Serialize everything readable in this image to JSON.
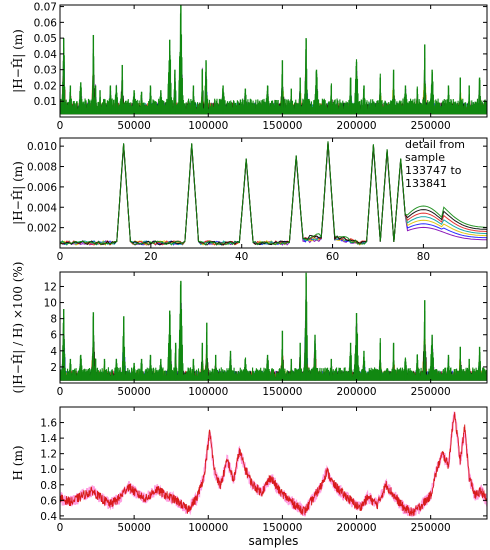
{
  "chart_data": [
    {
      "type": "line",
      "ylabel": "|H−Ĥ| (m)",
      "xlabel": "",
      "xlim": [
        0,
        288000
      ],
      "ylim": [
        0,
        0.071
      ],
      "xticks": [
        0,
        50000,
        100000,
        150000,
        200000,
        250000
      ],
      "yticks": [
        0.01,
        0.02,
        0.03,
        0.04,
        0.05,
        0.06,
        0.07
      ],
      "yfmt": 2,
      "series_colors": [
        "#7f00b2",
        "#1a1aff",
        "#e0c000",
        "#00a0a0",
        "#e02020",
        "#000000",
        "#118811"
      ],
      "baseline": 0.006,
      "peaks": [
        [
          2500,
          0.05
        ],
        [
          7000,
          0.02
        ],
        [
          14000,
          0.022
        ],
        [
          22500,
          0.052
        ],
        [
          24000,
          0.02
        ],
        [
          27000,
          0.017
        ],
        [
          34000,
          0.02
        ],
        [
          38000,
          0.02
        ],
        [
          42000,
          0.033
        ],
        [
          50000,
          0.017
        ],
        [
          55000,
          0.016
        ],
        [
          61000,
          0.02
        ],
        [
          68000,
          0.017
        ],
        [
          74000,
          0.049
        ],
        [
          77500,
          0.03
        ],
        [
          81500,
          0.071
        ],
        [
          90000,
          0.02
        ],
        [
          96000,
          0.03
        ],
        [
          98500,
          0.036
        ],
        [
          110000,
          0.02
        ],
        [
          125000,
          0.018
        ],
        [
          140000,
          0.02
        ],
        [
          150000,
          0.036
        ],
        [
          156000,
          0.018
        ],
        [
          162000,
          0.025
        ],
        [
          166000,
          0.05
        ],
        [
          173000,
          0.03
        ],
        [
          183000,
          0.02
        ],
        [
          196000,
          0.025
        ],
        [
          200000,
          0.035
        ],
        [
          205000,
          0.02
        ],
        [
          216000,
          0.025
        ],
        [
          225000,
          0.03
        ],
        [
          233000,
          0.02
        ],
        [
          241000,
          0.018
        ],
        [
          246000,
          0.046
        ],
        [
          251000,
          0.03
        ],
        [
          262000,
          0.02
        ],
        [
          270000,
          0.025
        ],
        [
          276000,
          0.02
        ],
        [
          283000,
          0.025
        ]
      ]
    },
    {
      "type": "line",
      "ylabel": "|H−Ĥ| (m)",
      "xlabel": "",
      "xlim": [
        0,
        94
      ],
      "ylim": [
        0,
        0.0108
      ],
      "xticks": [
        0,
        20,
        40,
        60,
        80
      ],
      "yticks": [
        0.002,
        0.004,
        0.006,
        0.008,
        0.01
      ],
      "yfmt": 3,
      "annotation": [
        "detail from",
        "sample",
        "133747 to",
        "133841"
      ],
      "series_colors": [
        "#7f00b2",
        "#1a1aff",
        "#e0c000",
        "#00a0a0",
        "#e02020",
        "#000000",
        "#118811"
      ],
      "spikes": [
        [
          14,
          0.0103
        ],
        [
          29,
          0.0103
        ],
        [
          41,
          0.0088
        ],
        [
          52,
          0.0091
        ],
        [
          59,
          0.0105
        ],
        [
          69,
          0.0102
        ],
        [
          72,
          0.0097
        ],
        [
          75,
          0.0088
        ]
      ],
      "after_bump": [
        80,
        0.0035
      ]
    },
    {
      "type": "line",
      "ylabel": "(|H−Ĥ| / H) ×100 (%)",
      "xlabel": "",
      "xlim": [
        0,
        288000
      ],
      "ylim": [
        0,
        13.8
      ],
      "xticks": [
        0,
        50000,
        100000,
        150000,
        200000,
        250000
      ],
      "yticks": [
        2,
        4,
        6,
        8,
        10,
        12
      ],
      "yfmt": 0,
      "series_colors": [
        "#7f00b2",
        "#1a1aff",
        "#e0c000",
        "#00a0a0",
        "#e02020",
        "#000000",
        "#118811"
      ],
      "baseline": 1.0,
      "peaks": [
        [
          2500,
          9.2
        ],
        [
          7000,
          3.0
        ],
        [
          14000,
          3.5
        ],
        [
          22500,
          8.8
        ],
        [
          24000,
          3.0
        ],
        [
          30000,
          3.0
        ],
        [
          38000,
          3.0
        ],
        [
          43000,
          8.3
        ],
        [
          50000,
          2.5
        ],
        [
          55000,
          3.0
        ],
        [
          61000,
          3.5
        ],
        [
          68000,
          3.0
        ],
        [
          74000,
          9.0
        ],
        [
          78000,
          5.0
        ],
        [
          81500,
          12.7
        ],
        [
          90000,
          3.0
        ],
        [
          96000,
          5.0
        ],
        [
          99000,
          7.5
        ],
        [
          105000,
          3.5
        ],
        [
          115000,
          4.0
        ],
        [
          125000,
          3.0
        ],
        [
          140000,
          3.5
        ],
        [
          150000,
          6.5
        ],
        [
          156000,
          3.0
        ],
        [
          162000,
          5.0
        ],
        [
          166000,
          13.7
        ],
        [
          172000,
          6.0
        ],
        [
          183000,
          3.0
        ],
        [
          196000,
          5.0
        ],
        [
          200000,
          8.7
        ],
        [
          205000,
          4.0
        ],
        [
          216000,
          5.0
        ],
        [
          225000,
          5.0
        ],
        [
          233000,
          3.0
        ],
        [
          241000,
          3.5
        ],
        [
          246000,
          10.3
        ],
        [
          251000,
          6.0
        ],
        [
          262000,
          3.5
        ],
        [
          270000,
          4.5
        ],
        [
          276000,
          3.0
        ],
        [
          283000,
          4.5
        ]
      ]
    },
    {
      "type": "line",
      "ylabel": "H (m)",
      "xlabel": "samples",
      "xlim": [
        0,
        288000
      ],
      "ylim": [
        0.36,
        1.8
      ],
      "xticks": [
        0,
        50000,
        100000,
        150000,
        200000,
        250000
      ],
      "yticks": [
        0.4,
        0.6,
        0.8,
        1.0,
        1.2,
        1.4,
        1.6
      ],
      "yfmt": 1,
      "series_colors": [
        "#ff4ec8",
        "#d81b1b"
      ],
      "profile": [
        [
          0,
          0.62
        ],
        [
          8000,
          0.58
        ],
        [
          15000,
          0.66
        ],
        [
          22000,
          0.72
        ],
        [
          28000,
          0.62
        ],
        [
          34000,
          0.55
        ],
        [
          40000,
          0.63
        ],
        [
          46000,
          0.78
        ],
        [
          52000,
          0.68
        ],
        [
          58000,
          0.62
        ],
        [
          65000,
          0.74
        ],
        [
          72000,
          0.66
        ],
        [
          80000,
          0.58
        ],
        [
          86000,
          0.48
        ],
        [
          92000,
          0.62
        ],
        [
          97000,
          0.9
        ],
        [
          101000,
          1.48
        ],
        [
          104000,
          1.0
        ],
        [
          108000,
          0.78
        ],
        [
          113000,
          1.12
        ],
        [
          117000,
          0.85
        ],
        [
          121000,
          1.24
        ],
        [
          125000,
          1.0
        ],
        [
          130000,
          0.8
        ],
        [
          136000,
          0.7
        ],
        [
          142000,
          0.9
        ],
        [
          148000,
          0.72
        ],
        [
          155000,
          0.6
        ],
        [
          160000,
          0.52
        ],
        [
          165000,
          0.46
        ],
        [
          170000,
          0.6
        ],
        [
          176000,
          0.78
        ],
        [
          180000,
          0.98
        ],
        [
          184000,
          0.82
        ],
        [
          190000,
          0.7
        ],
        [
          196000,
          0.6
        ],
        [
          202000,
          0.5
        ],
        [
          208000,
          0.64
        ],
        [
          214000,
          0.54
        ],
        [
          220000,
          0.8
        ],
        [
          226000,
          0.64
        ],
        [
          232000,
          0.5
        ],
        [
          238000,
          0.44
        ],
        [
          244000,
          0.54
        ],
        [
          250000,
          0.66
        ],
        [
          254000,
          0.98
        ],
        [
          258000,
          1.2
        ],
        [
          262000,
          1.05
        ],
        [
          266000,
          1.75
        ],
        [
          270000,
          1.1
        ],
        [
          273000,
          1.55
        ],
        [
          276000,
          0.9
        ],
        [
          280000,
          0.66
        ],
        [
          284000,
          0.72
        ],
        [
          288000,
          0.6
        ]
      ]
    }
  ]
}
